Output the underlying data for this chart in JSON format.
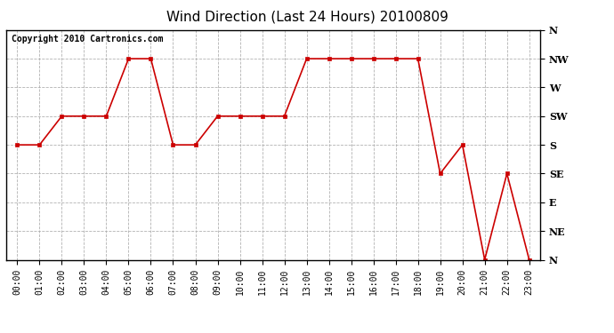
{
  "title": "Wind Direction (Last 24 Hours) 20100809",
  "copyright_text": "Copyright 2010 Cartronics.com",
  "background_color": "#ffffff",
  "line_color": "#cc0000",
  "grid_color": "#aaaaaa",
  "hours": [
    0,
    1,
    2,
    3,
    4,
    5,
    6,
    7,
    8,
    9,
    10,
    11,
    12,
    13,
    14,
    15,
    16,
    17,
    18,
    19,
    20,
    21,
    22,
    23
  ],
  "y_values": [
    180,
    180,
    225,
    225,
    225,
    315,
    315,
    180,
    180,
    225,
    225,
    225,
    225,
    315,
    315,
    315,
    315,
    315,
    315,
    135,
    180,
    0,
    135,
    0
  ],
  "ytick_labels": [
    "N",
    "NE",
    "E",
    "SE",
    "S",
    "SW",
    "W",
    "NW",
    "N"
  ],
  "ytick_values": [
    0,
    45,
    90,
    135,
    180,
    225,
    270,
    315,
    360
  ],
  "ylim": [
    0,
    360
  ],
  "title_fontsize": 11,
  "tick_fontsize": 8,
  "copyright_fontsize": 7
}
